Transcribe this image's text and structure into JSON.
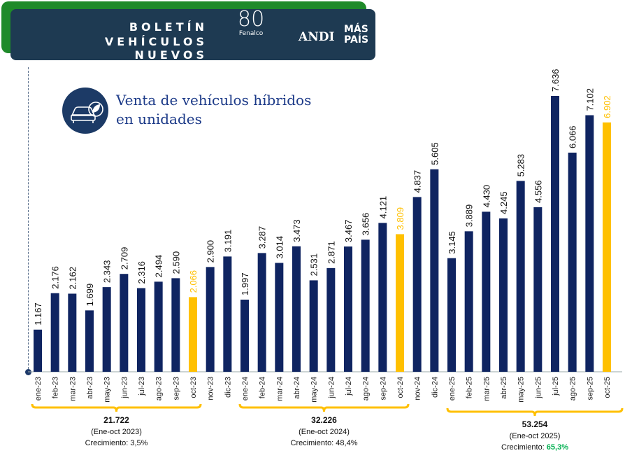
{
  "header": {
    "line1": "BOLETÍN",
    "line2": "VEHÍCULOS NUEVOS",
    "logos": [
      "80 Años Fenalco",
      "ANDI",
      "MÁS PAÍS"
    ]
  },
  "title_line1": "Venta de vehículos híbridos",
  "title_line2": "en unidades",
  "colors": {
    "bar": "#0f2461",
    "highlight": "#ffc000",
    "green": "#00b050"
  },
  "chart_data": {
    "type": "bar",
    "title": "Venta de vehículos híbridos en unidades",
    "categories": [
      "ene-23",
      "feb-23",
      "mar-23",
      "abr-23",
      "may-23",
      "jun-23",
      "jul-23",
      "ago-23",
      "sep-23",
      "oct-23",
      "nov-23",
      "dic-23",
      "ene-24",
      "feb-24",
      "mar-24",
      "abr-24",
      "may-24",
      "jun-24",
      "jul-24",
      "ago-24",
      "sep-24",
      "oct-24",
      "nov-24",
      "dic-24",
      "ene-25",
      "feb-25",
      "mar-25",
      "abr-25",
      "may-25",
      "jun-25",
      "jul-25",
      "ago-25",
      "sep-25",
      "oct-25"
    ],
    "values": [
      1167,
      2176,
      2162,
      1699,
      2343,
      2709,
      2316,
      2494,
      2590,
      2066,
      2900,
      3191,
      1997,
      3287,
      3014,
      3473,
      2531,
      2871,
      3467,
      3656,
      4121,
      3809,
      4837,
      5605,
      3145,
      3889,
      4430,
      4245,
      5283,
      4556,
      7636,
      6066,
      7102,
      6902
    ],
    "labels": [
      "1.167",
      "2.176",
      "2.162",
      "1.699",
      "2.343",
      "2.709",
      "2.316",
      "2.494",
      "2.590",
      "2.066",
      "2.900",
      "3.191",
      "1.997",
      "3.287",
      "3.014",
      "3.473",
      "2.531",
      "2.871",
      "3.467",
      "3.656",
      "4.121",
      "3.809",
      "4.837",
      "5.605",
      "3.145",
      "3.889",
      "4.430",
      "4.245",
      "5.283",
      "4.556",
      "7.636",
      "6.066",
      "7.102",
      "6.902"
    ],
    "highlighted": [
      "oct-23",
      "oct-24",
      "oct-25"
    ],
    "ylim": [
      0,
      7636
    ],
    "groups": [
      {
        "total": "21.722",
        "period": "(Ene-oct 2023)",
        "growth_label": "Crecimiento: ",
        "growth": "3,5%"
      },
      {
        "total": "32.226",
        "period": "(Ene-oct 2024)",
        "growth_label": "Crecimiento: ",
        "growth": "48,4%"
      },
      {
        "total": "53.254",
        "period": "(Ene-oct 2025)",
        "growth_label": "Crecimiento: ",
        "growth": "65,3%"
      }
    ]
  }
}
